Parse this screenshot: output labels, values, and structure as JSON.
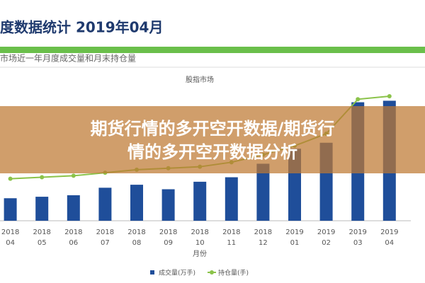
{
  "chart_data": {
    "type": "bar-line",
    "title": "度数据统计 2019年04月",
    "subtitle": "市场近一年月度成交量和月末持仓量",
    "plot_title": "股指市场",
    "overlay": "期货行情的多开空开数据/期货行情的多开空开数据分析",
    "x_label": "月份",
    "categories": [
      "2018 04",
      "2018 05",
      "2018 06",
      "2018 07",
      "2018 08",
      "2018 09",
      "2018 10",
      "2018 11",
      "2018 12",
      "2019 01",
      "2019 02",
      "2019 03",
      "2019 04"
    ],
    "series": [
      {
        "name": "成交量(万手)",
        "type": "bar",
        "color": "#1f4e9a",
        "values": [
          15,
          16,
          17,
          22,
          24,
          21,
          26,
          29,
          38,
          48,
          52,
          79,
          80
        ]
      },
      {
        "name": "持仓量(手)",
        "type": "line",
        "color": "#8bc34a",
        "values": [
          28,
          29,
          30,
          32,
          34,
          35,
          36,
          39,
          44,
          50,
          58,
          81,
          83
        ]
      }
    ],
    "ylim": [
      0,
      100
    ]
  }
}
